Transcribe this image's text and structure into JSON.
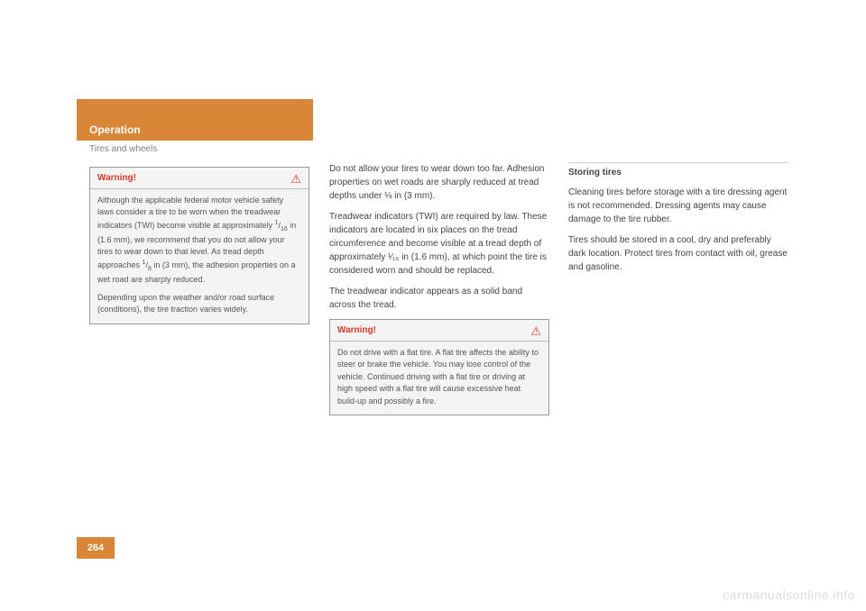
{
  "header": {
    "title": "Operation",
    "subtitle": "Tires and wheels",
    "bg_color": "#d98637",
    "text_color": "#ffffff"
  },
  "page_number": "264",
  "watermark": "carmanualsonline.info",
  "col1": {
    "warning": {
      "label": "Warning!",
      "p1_a": "Although the applicable federal motor vehicle safety laws consider a tire to be worn when the treadwear indicators (TWI) become visible at approximately ",
      "frac1_num": "1",
      "frac1_den": "16",
      "p1_b": " in (1.6 mm), we recommend that you do not allow your tires to wear down to that level. As tread depth approaches ",
      "frac2_num": "1",
      "frac2_den": "8",
      "p1_c": " in (3 mm), the adhesion properties on a wet road are sharply reduced.",
      "p2": "Depending upon the weather and/or road surface (conditions), the tire traction varies widely."
    }
  },
  "col2": {
    "p1": "Do not allow your tires to wear down too far. Adhesion properties on wet roads are sharply reduced at tread depths under ⅛ in (3 mm).",
    "p2": "Treadwear indicators (TWI) are required by law. These indicators are located in six places on the tread circumference and become visible at a tread depth of approximately ¹⁄₁₆ in (1.6 mm), at which point the tire is considered worn and should be replaced.",
    "p3": "The treadwear indicator appears as a solid band across the tread.",
    "warning": {
      "label": "Warning!",
      "p1": "Do not drive with a flat tire. A flat tire affects the ability to steer or brake the vehicle. You may lose control of the vehicle. Continued driving with a flat tire or driving at high speed with a flat tire will cause excessive heat build-up and possibly a fire."
    }
  },
  "col3": {
    "heading": "Storing tires",
    "p1": "Cleaning tires before storage with a tire dressing agent is not recommended. Dressing agents may cause damage to the tire rubber.",
    "p2": "Tires should be stored in a cool, dry and preferably dark location. Protect tires from contact with oil, grease and gasoline."
  },
  "colors": {
    "warning_text": "#d93a2b",
    "box_bg": "#f4f4f4",
    "box_border": "#999999",
    "body_text": "#444444",
    "muted_text": "#808080",
    "watermark": "#dddddd"
  }
}
